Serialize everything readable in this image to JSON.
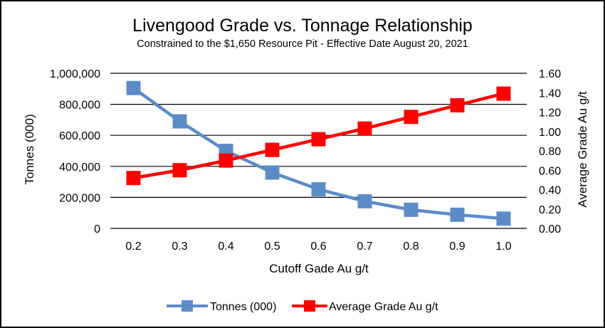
{
  "chart_data": {
    "type": "line",
    "title": "Livengood Grade vs. Tonnage Relationship",
    "subtitle": "Constrained to the $1,650 Resource Pit  - Effective Date August 20, 2021",
    "xlabel": "Cutoff Gade Au g/t",
    "ylabel": "Tonnes (000)",
    "y2label": "Average Grade Au g/t",
    "categories": [
      "0.2",
      "0.3",
      "0.4",
      "0.5",
      "0.6",
      "0.7",
      "0.8",
      "0.9",
      "1.0"
    ],
    "ylim": [
      0,
      1000000
    ],
    "y2lim": [
      0,
      1.6
    ],
    "yticks": [
      "0",
      "200,000",
      "400,000",
      "600,000",
      "800,000",
      "1,000,000"
    ],
    "y2ticks": [
      "0.00",
      "0.20",
      "0.40",
      "0.60",
      "0.80",
      "1.00",
      "1.20",
      "1.40",
      "1.60"
    ],
    "gridlines": "horizontal",
    "legend_position": "bottom",
    "series": [
      {
        "name": "Tonnes (000)",
        "axis": "left",
        "color": "#5b8cc9",
        "values": [
          905000,
          690000,
          500000,
          360000,
          252000,
          175000,
          120000,
          88000,
          63000
        ]
      },
      {
        "name": "Average Grade Au g/t",
        "axis": "right",
        "color": "#ff0000",
        "values": [
          0.52,
          0.6,
          0.7,
          0.81,
          0.92,
          1.03,
          1.15,
          1.27,
          1.39
        ]
      }
    ]
  }
}
